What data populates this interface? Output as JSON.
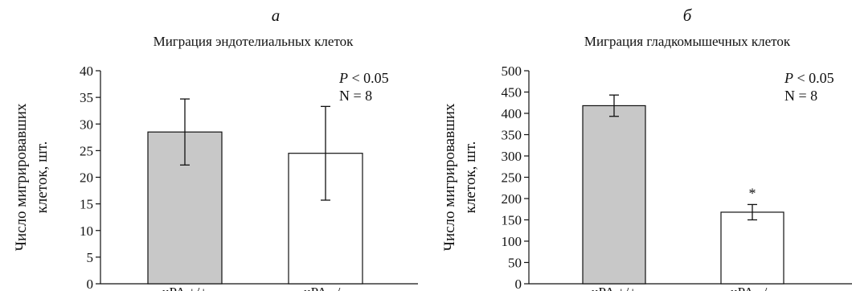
{
  "chart_data": [
    {
      "type": "bar",
      "panel_letter": "а",
      "title": "Миграция эндотелиальных клеток",
      "ylabel_line1": "Число мигрировавших",
      "ylabel_line2": "клеток, шт.",
      "categories": [
        "uPA +/+",
        "uPA –/–"
      ],
      "values": [
        28.5,
        24.5
      ],
      "errors": [
        6.2,
        8.8
      ],
      "bar_colors": [
        "#c8c8c8",
        "#ffffff"
      ],
      "ylim": [
        0,
        40
      ],
      "yticks": [
        0,
        5,
        10,
        15,
        20,
        25,
        30,
        35,
        40
      ],
      "annotation_p": "P",
      "annotation_p_rest": " < 0.05",
      "annotation_n": "N = 8",
      "markers": [
        "",
        ""
      ],
      "grid": false
    },
    {
      "type": "bar",
      "panel_letter": "б",
      "title": "Миграция гладкомышечных клеток",
      "ylabel_line1": "Число мигрировавших",
      "ylabel_line2": "клеток, шт.",
      "categories": [
        "uPA +/+",
        "uPA –/–"
      ],
      "values": [
        418,
        168
      ],
      "errors": [
        25,
        18
      ],
      "bar_colors": [
        "#c8c8c8",
        "#ffffff"
      ],
      "ylim": [
        0,
        500
      ],
      "yticks": [
        0,
        50,
        100,
        150,
        200,
        250,
        300,
        350,
        400,
        450,
        500
      ],
      "annotation_p": "P",
      "annotation_p_rest": " < 0.05",
      "annotation_n": "N = 8",
      "markers": [
        "",
        "*"
      ],
      "grid": false
    }
  ]
}
